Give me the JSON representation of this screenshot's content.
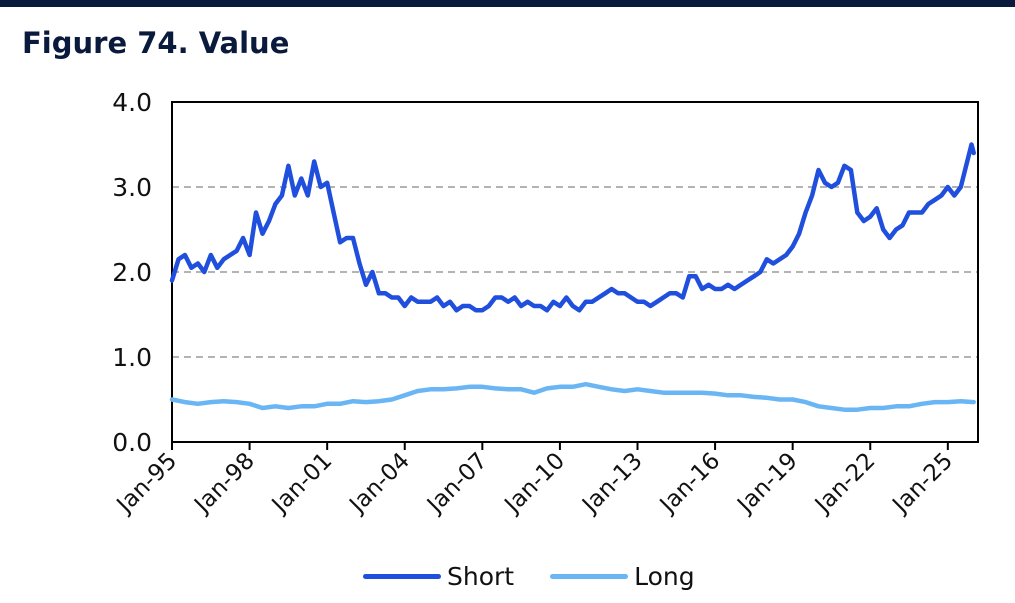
{
  "figure": {
    "title": "Figure 74. Value"
  },
  "chart_data": {
    "type": "line",
    "title": "",
    "xlabel": "",
    "ylabel": "",
    "x_tick_labels": [
      "Jan-95",
      "Jan-98",
      "Jan-01",
      "Jan-04",
      "Jan-07",
      "Jan-10",
      "Jan-13",
      "Jan-16",
      "Jan-19",
      "Jan-22",
      "Jan-25"
    ],
    "x_range": [
      "1995-01",
      "2026-03"
    ],
    "ylim": [
      0,
      4
    ],
    "y_tick_labels": [
      "0.0",
      "1.0",
      "2.0",
      "3.0",
      "4.0"
    ],
    "grid": "horizontal dashed",
    "legend_position": "bottom",
    "series": [
      {
        "name": "Short",
        "color": "#1f4fdc",
        "points": [
          [
            "1995-01",
            1.9
          ],
          [
            "1995-04",
            2.15
          ],
          [
            "1995-07",
            2.2
          ],
          [
            "1995-10",
            2.05
          ],
          [
            "1996-01",
            2.1
          ],
          [
            "1996-04",
            2.0
          ],
          [
            "1996-07",
            2.2
          ],
          [
            "1996-10",
            2.05
          ],
          [
            "1997-01",
            2.15
          ],
          [
            "1997-04",
            2.2
          ],
          [
            "1997-07",
            2.25
          ],
          [
            "1997-10",
            2.4
          ],
          [
            "1998-01",
            2.2
          ],
          [
            "1998-04",
            2.7
          ],
          [
            "1998-07",
            2.45
          ],
          [
            "1998-10",
            2.6
          ],
          [
            "1999-01",
            2.8
          ],
          [
            "1999-04",
            2.9
          ],
          [
            "1999-07",
            3.25
          ],
          [
            "1999-10",
            2.9
          ],
          [
            "2000-01",
            3.1
          ],
          [
            "2000-04",
            2.9
          ],
          [
            "2000-07",
            3.3
          ],
          [
            "2000-10",
            3.0
          ],
          [
            "2001-01",
            3.05
          ],
          [
            "2001-04",
            2.7
          ],
          [
            "2001-07",
            2.35
          ],
          [
            "2001-10",
            2.4
          ],
          [
            "2002-01",
            2.4
          ],
          [
            "2002-04",
            2.1
          ],
          [
            "2002-07",
            1.85
          ],
          [
            "2002-10",
            2.0
          ],
          [
            "2003-01",
            1.75
          ],
          [
            "2003-04",
            1.75
          ],
          [
            "2003-07",
            1.7
          ],
          [
            "2003-10",
            1.7
          ],
          [
            "2004-01",
            1.6
          ],
          [
            "2004-04",
            1.7
          ],
          [
            "2004-07",
            1.65
          ],
          [
            "2004-10",
            1.65
          ],
          [
            "2005-01",
            1.65
          ],
          [
            "2005-04",
            1.7
          ],
          [
            "2005-07",
            1.6
          ],
          [
            "2005-10",
            1.65
          ],
          [
            "2006-01",
            1.55
          ],
          [
            "2006-04",
            1.6
          ],
          [
            "2006-07",
            1.6
          ],
          [
            "2006-10",
            1.55
          ],
          [
            "2007-01",
            1.55
          ],
          [
            "2007-04",
            1.6
          ],
          [
            "2007-07",
            1.7
          ],
          [
            "2007-10",
            1.7
          ],
          [
            "2008-01",
            1.65
          ],
          [
            "2008-04",
            1.7
          ],
          [
            "2008-07",
            1.6
          ],
          [
            "2008-10",
            1.65
          ],
          [
            "2009-01",
            1.6
          ],
          [
            "2009-04",
            1.6
          ],
          [
            "2009-07",
            1.55
          ],
          [
            "2009-10",
            1.65
          ],
          [
            "2010-01",
            1.6
          ],
          [
            "2010-04",
            1.7
          ],
          [
            "2010-07",
            1.6
          ],
          [
            "2010-10",
            1.55
          ],
          [
            "2011-01",
            1.65
          ],
          [
            "2011-04",
            1.65
          ],
          [
            "2011-07",
            1.7
          ],
          [
            "2011-10",
            1.75
          ],
          [
            "2012-01",
            1.8
          ],
          [
            "2012-04",
            1.75
          ],
          [
            "2012-07",
            1.75
          ],
          [
            "2012-10",
            1.7
          ],
          [
            "2013-01",
            1.65
          ],
          [
            "2013-04",
            1.65
          ],
          [
            "2013-07",
            1.6
          ],
          [
            "2013-10",
            1.65
          ],
          [
            "2014-01",
            1.7
          ],
          [
            "2014-04",
            1.75
          ],
          [
            "2014-07",
            1.75
          ],
          [
            "2014-10",
            1.7
          ],
          [
            "2015-01",
            1.95
          ],
          [
            "2015-04",
            1.95
          ],
          [
            "2015-07",
            1.8
          ],
          [
            "2015-10",
            1.85
          ],
          [
            "2016-01",
            1.8
          ],
          [
            "2016-04",
            1.8
          ],
          [
            "2016-07",
            1.85
          ],
          [
            "2016-10",
            1.8
          ],
          [
            "2017-01",
            1.85
          ],
          [
            "2017-04",
            1.9
          ],
          [
            "2017-07",
            1.95
          ],
          [
            "2017-10",
            2.0
          ],
          [
            "2018-01",
            2.15
          ],
          [
            "2018-04",
            2.1
          ],
          [
            "2018-07",
            2.15
          ],
          [
            "2018-10",
            2.2
          ],
          [
            "2019-01",
            2.3
          ],
          [
            "2019-04",
            2.45
          ],
          [
            "2019-07",
            2.7
          ],
          [
            "2019-10",
            2.9
          ],
          [
            "2020-01",
            3.2
          ],
          [
            "2020-04",
            3.05
          ],
          [
            "2020-07",
            3.0
          ],
          [
            "2020-10",
            3.05
          ],
          [
            "2021-01",
            3.25
          ],
          [
            "2021-04",
            3.2
          ],
          [
            "2021-07",
            2.7
          ],
          [
            "2021-10",
            2.6
          ],
          [
            "2022-01",
            2.65
          ],
          [
            "2022-04",
            2.75
          ],
          [
            "2022-07",
            2.5
          ],
          [
            "2022-10",
            2.4
          ],
          [
            "2023-01",
            2.5
          ],
          [
            "2023-04",
            2.55
          ],
          [
            "2023-07",
            2.7
          ],
          [
            "2023-10",
            2.7
          ],
          [
            "2024-01",
            2.7
          ],
          [
            "2024-04",
            2.8
          ],
          [
            "2024-07",
            2.85
          ],
          [
            "2024-10",
            2.9
          ],
          [
            "2025-01",
            3.0
          ],
          [
            "2025-04",
            2.9
          ],
          [
            "2025-07",
            3.0
          ],
          [
            "2025-10",
            3.3
          ],
          [
            "2025-12",
            3.5
          ],
          [
            "2026-01",
            3.4
          ]
        ]
      },
      {
        "name": "Long",
        "color": "#6ab6f5",
        "points": [
          [
            "1995-01",
            0.5
          ],
          [
            "1995-07",
            0.47
          ],
          [
            "1996-01",
            0.45
          ],
          [
            "1996-07",
            0.47
          ],
          [
            "1997-01",
            0.48
          ],
          [
            "1997-07",
            0.47
          ],
          [
            "1998-01",
            0.45
          ],
          [
            "1998-07",
            0.4
          ],
          [
            "1999-01",
            0.42
          ],
          [
            "1999-07",
            0.4
          ],
          [
            "2000-01",
            0.42
          ],
          [
            "2000-07",
            0.42
          ],
          [
            "2001-01",
            0.45
          ],
          [
            "2001-07",
            0.45
          ],
          [
            "2002-01",
            0.48
          ],
          [
            "2002-07",
            0.47
          ],
          [
            "2003-01",
            0.48
          ],
          [
            "2003-07",
            0.5
          ],
          [
            "2004-01",
            0.55
          ],
          [
            "2004-07",
            0.6
          ],
          [
            "2005-01",
            0.62
          ],
          [
            "2005-07",
            0.62
          ],
          [
            "2006-01",
            0.63
          ],
          [
            "2006-07",
            0.65
          ],
          [
            "2007-01",
            0.65
          ],
          [
            "2007-07",
            0.63
          ],
          [
            "2008-01",
            0.62
          ],
          [
            "2008-07",
            0.62
          ],
          [
            "2009-01",
            0.58
          ],
          [
            "2009-07",
            0.63
          ],
          [
            "2010-01",
            0.65
          ],
          [
            "2010-07",
            0.65
          ],
          [
            "2011-01",
            0.68
          ],
          [
            "2011-07",
            0.65
          ],
          [
            "2012-01",
            0.62
          ],
          [
            "2012-07",
            0.6
          ],
          [
            "2013-01",
            0.62
          ],
          [
            "2013-07",
            0.6
          ],
          [
            "2014-01",
            0.58
          ],
          [
            "2014-07",
            0.58
          ],
          [
            "2015-01",
            0.58
          ],
          [
            "2015-07",
            0.58
          ],
          [
            "2016-01",
            0.57
          ],
          [
            "2016-07",
            0.55
          ],
          [
            "2017-01",
            0.55
          ],
          [
            "2017-07",
            0.53
          ],
          [
            "2018-01",
            0.52
          ],
          [
            "2018-07",
            0.5
          ],
          [
            "2019-01",
            0.5
          ],
          [
            "2019-07",
            0.47
          ],
          [
            "2020-01",
            0.42
          ],
          [
            "2020-07",
            0.4
          ],
          [
            "2021-01",
            0.38
          ],
          [
            "2021-07",
            0.38
          ],
          [
            "2022-01",
            0.4
          ],
          [
            "2022-07",
            0.4
          ],
          [
            "2023-01",
            0.42
          ],
          [
            "2023-07",
            0.42
          ],
          [
            "2024-01",
            0.45
          ],
          [
            "2024-07",
            0.47
          ],
          [
            "2025-01",
            0.47
          ],
          [
            "2025-07",
            0.48
          ],
          [
            "2026-01",
            0.47
          ]
        ]
      }
    ]
  }
}
